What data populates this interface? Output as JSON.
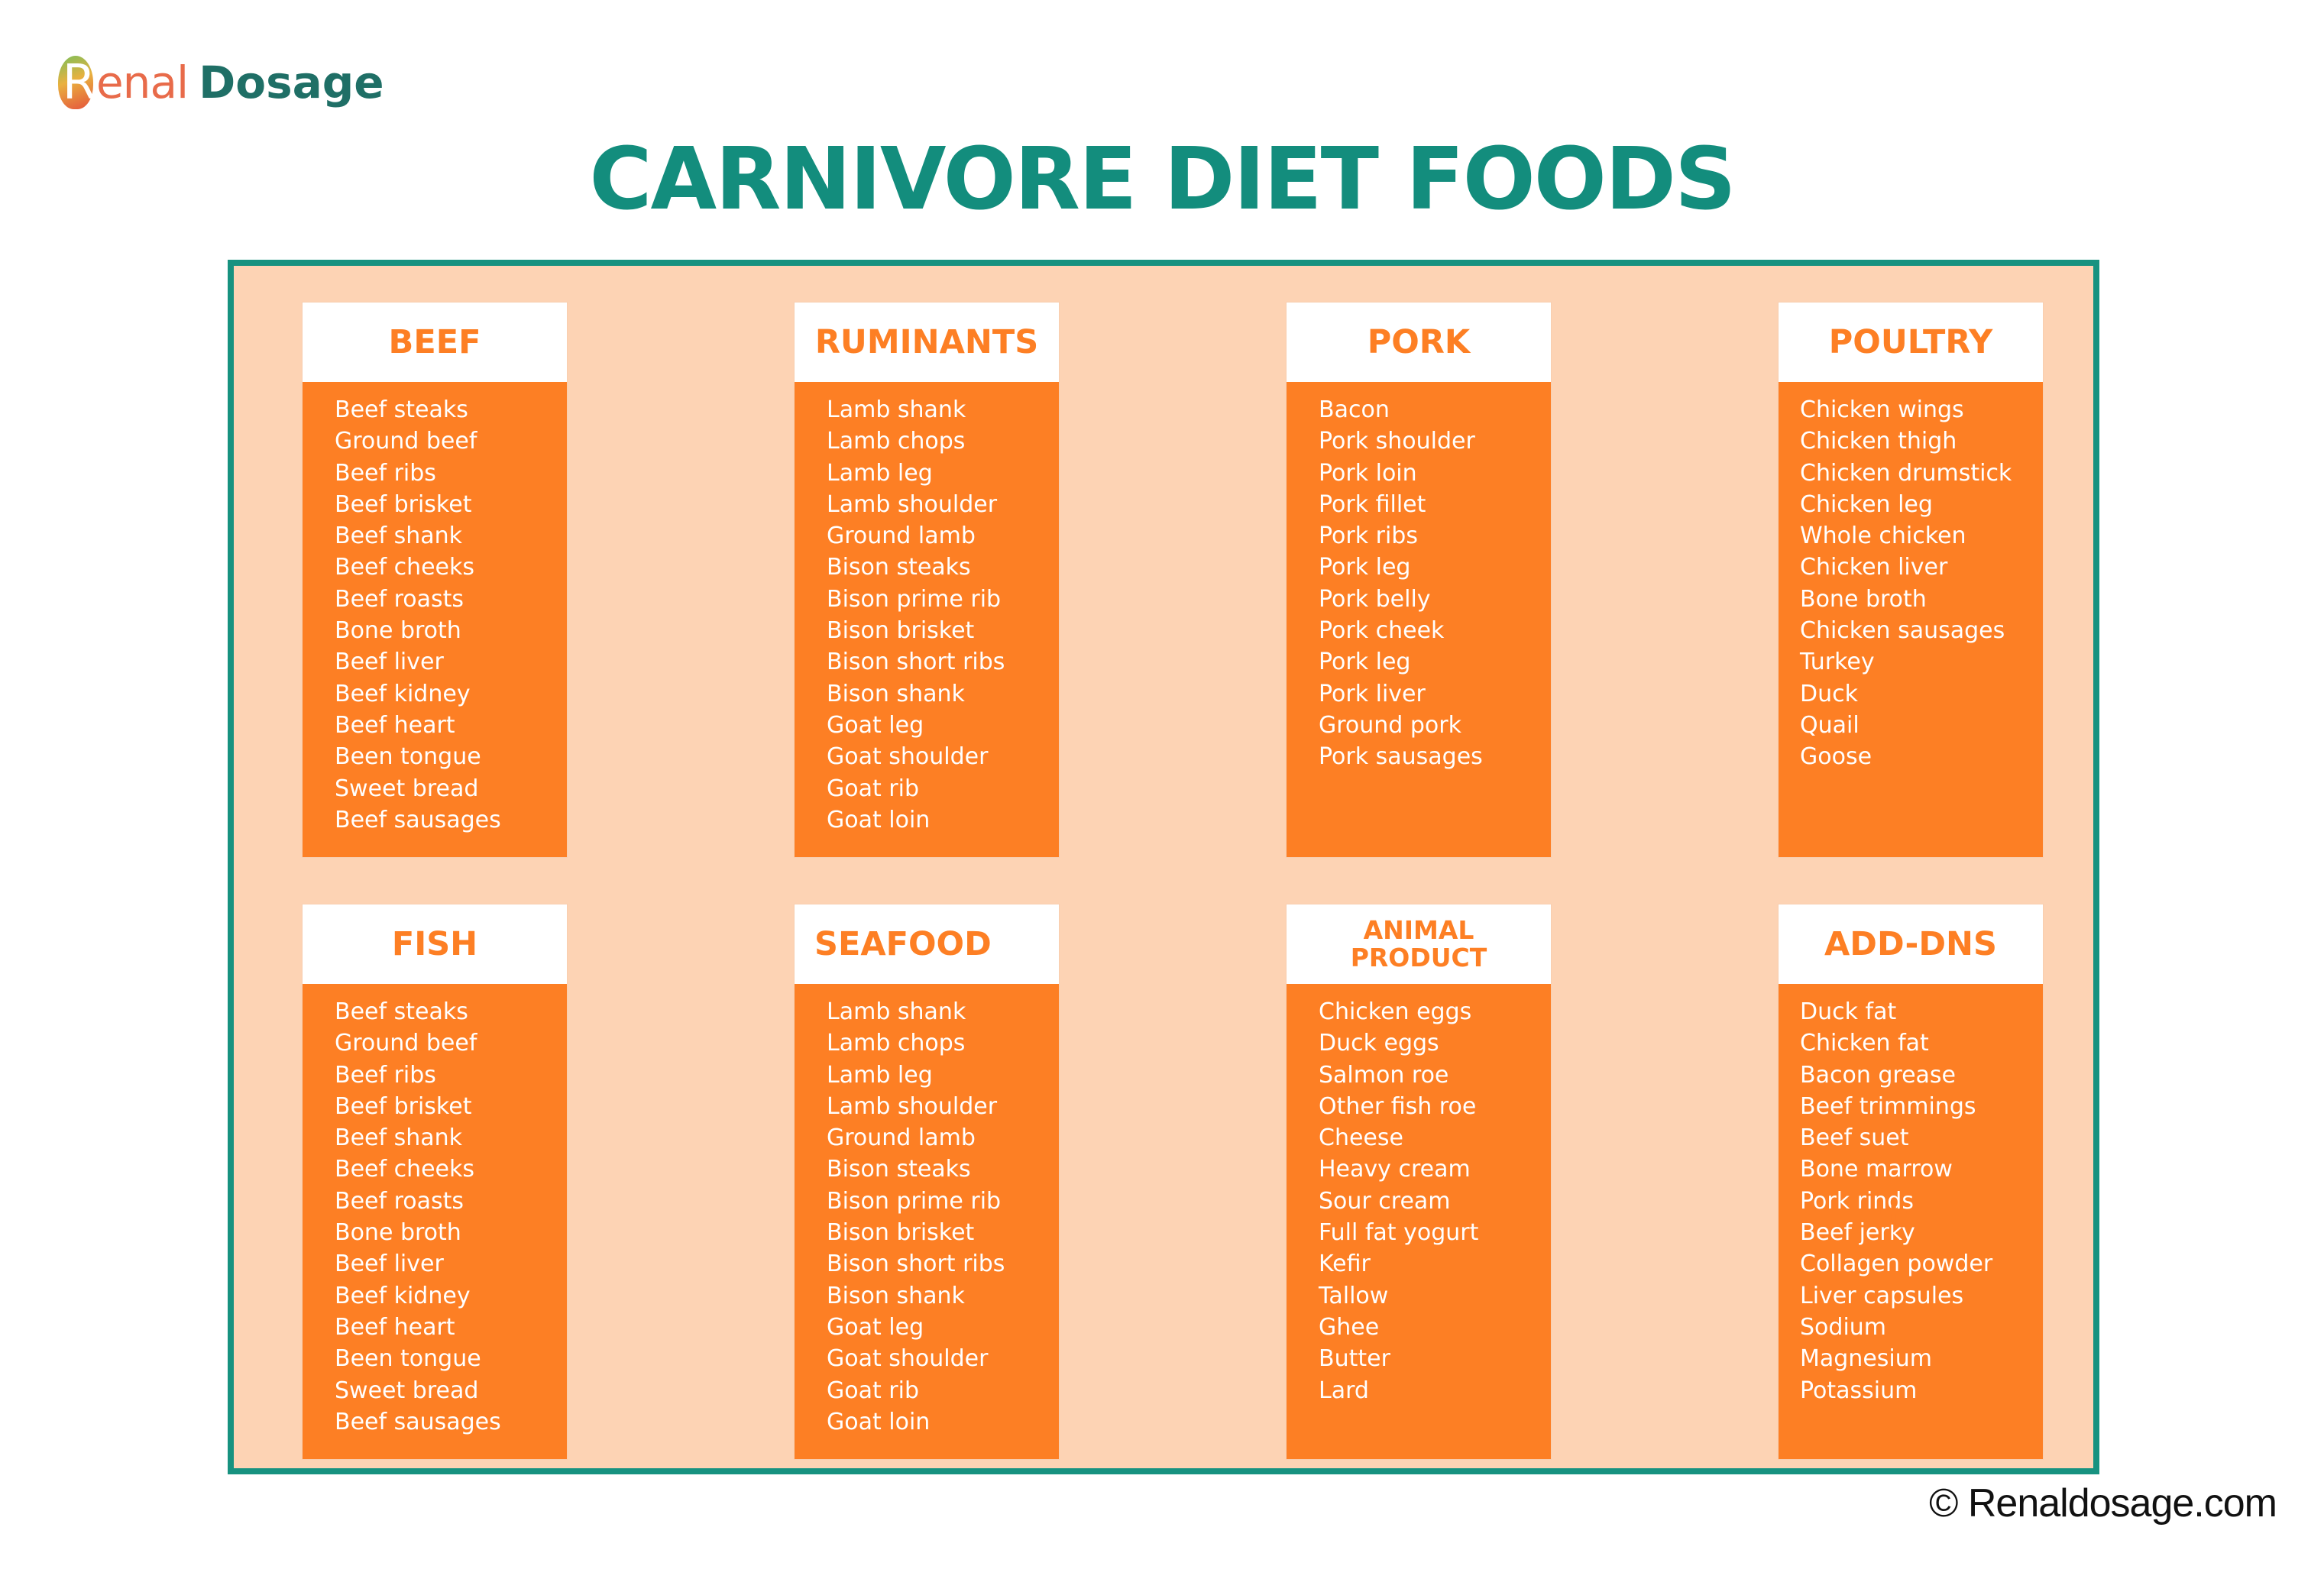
{
  "brand": {
    "logo_letter": "R",
    "name_part1": "enal",
    "name_part2": "Dosage",
    "colors": {
      "teal": "#138d7d",
      "orange": "#fd7f24",
      "peach": "#fdd3b4"
    }
  },
  "title": "CARNIVORE DIET FOODS",
  "plus_sign": "+",
  "copyright": "© Renaldosage.com",
  "categories": [
    {
      "title": "BEEF",
      "items": [
        "Beef steaks",
        "Ground beef",
        "Beef ribs",
        "Beef brisket",
        "Beef shank",
        "Beef cheeks",
        "Beef roasts",
        "Bone broth",
        "Beef liver",
        "Beef kidney",
        "Beef heart",
        "Been tongue",
        "Sweet bread",
        "Beef sausages"
      ]
    },
    {
      "title": "RUMINANTS",
      "items": [
        "Lamb shank",
        "Lamb chops",
        "Lamb leg",
        "Lamb shoulder",
        "Ground lamb",
        "Bison steaks",
        "Bison prime rib",
        "Bison brisket",
        "Bison short ribs",
        "Bison shank",
        "Goat leg",
        "Goat shoulder",
        "Goat rib",
        "Goat loin"
      ]
    },
    {
      "title": "PORK",
      "items": [
        "Bacon",
        "Pork shoulder",
        "Pork loin",
        "Pork fillet",
        "Pork ribs",
        "Pork leg",
        "Pork belly",
        "Pork cheek",
        "Pork leg",
        "Pork liver",
        "Ground pork",
        "Pork sausages"
      ]
    },
    {
      "title": "POULTRY",
      "items": [
        "Chicken wings",
        "Chicken thigh",
        "Chicken drumstick",
        "Chicken leg",
        "Whole chicken",
        "Chicken liver",
        "Bone broth",
        "Chicken sausages",
        "Turkey",
        "Duck",
        "Quail",
        "Goose"
      ]
    },
    {
      "title": "FISH",
      "items": [
        "Beef steaks",
        "Ground beef",
        "Beef ribs",
        "Beef brisket",
        "Beef shank",
        "Beef cheeks",
        "Beef roasts",
        "Bone broth",
        "Beef liver",
        "Beef kidney",
        "Beef heart",
        "Been tongue",
        "Sweet bread",
        "Beef sausages"
      ]
    },
    {
      "title": "SEAFOOD",
      "items": [
        "Lamb shank",
        "Lamb chops",
        "Lamb leg",
        "Lamb shoulder",
        "Ground lamb",
        "Bison steaks",
        "Bison prime rib",
        "Bison brisket",
        "Bison short ribs",
        "Bison shank",
        "Goat leg",
        "Goat shoulder",
        "Goat rib",
        "Goat loin"
      ]
    },
    {
      "title_line1": "ANIMAL",
      "title_line2": "PRODUCT",
      "items": [
        "Chicken eggs",
        "Duck eggs",
        "Salmon roe",
        "Other fish roe",
        "Cheese",
        "Heavy cream",
        "Sour cream",
        "Full fat yogurt",
        "Kefir",
        "Tallow",
        "Ghee",
        "Butter",
        "Lard"
      ]
    },
    {
      "title": "ADD-DNS",
      "items": [
        "Duck fat",
        "Chicken fat",
        "Bacon grease",
        "Beef trimmings",
        "Beef suet",
        "Bone marrow",
        "Pork rinds",
        "Beef jerky",
        "Collagen powder",
        "Liver capsules",
        "Sodium",
        "Magnesium",
        "Potassium"
      ]
    }
  ]
}
